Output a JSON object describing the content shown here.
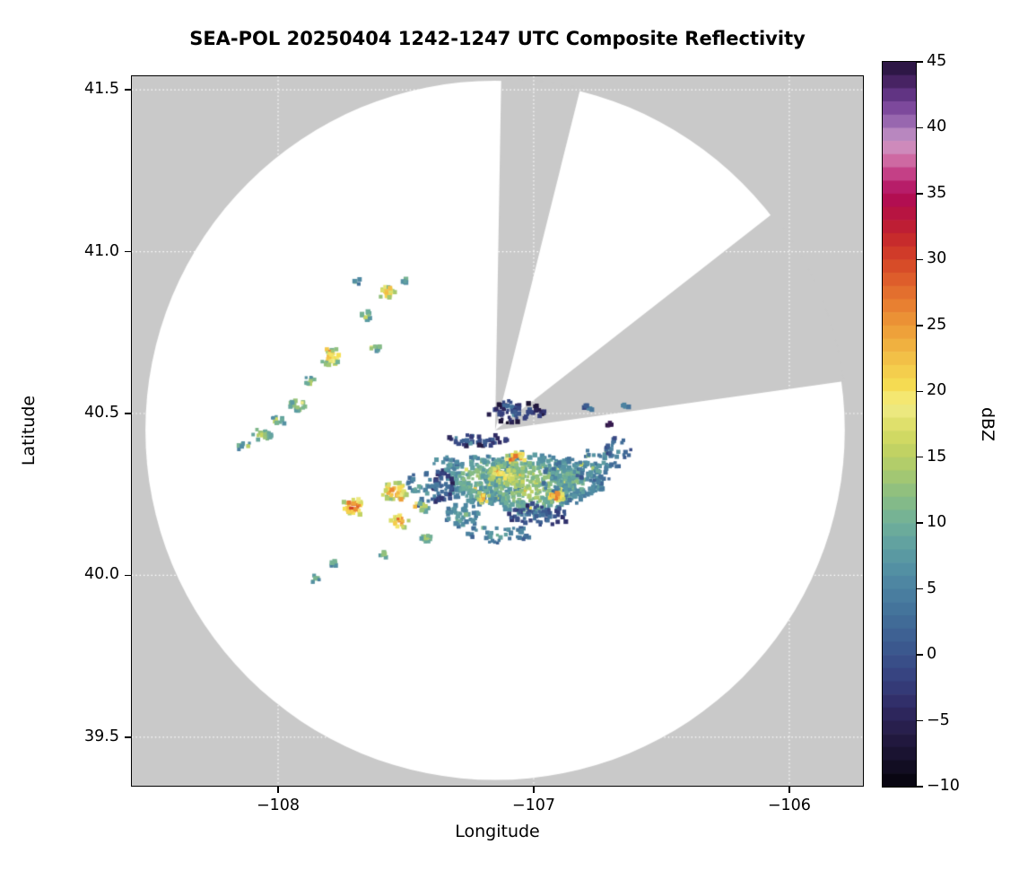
{
  "chart_data": {
    "type": "heatmap",
    "variant": "radar_composite_reflectivity_ppi",
    "title": "SEA-POL 20250404 1242-1247 UTC Composite Reflectivity",
    "xlabel": "Longitude",
    "ylabel": "Latitude",
    "axes": {
      "xlim": [
        -108.572,
        -105.712
      ],
      "ylim": [
        39.35,
        41.542
      ],
      "xticks": [
        -108,
        -107,
        -106
      ],
      "xtick_labels": [
        "−108",
        "−107",
        "−106"
      ],
      "yticks": [
        39.5,
        40.0,
        40.5,
        41.0,
        41.5
      ],
      "ytick_labels": [
        "39.5",
        "40.0",
        "40.5",
        "41.0",
        "41.5"
      ],
      "grid": true
    },
    "colorbar": {
      "label": "dBZ",
      "min": -10,
      "max": 45,
      "ticks": [
        45,
        40,
        35,
        30,
        25,
        20,
        15,
        10,
        5,
        0,
        -5,
        -10
      ],
      "tick_labels": [
        "45",
        "40",
        "35",
        "30",
        "25",
        "20",
        "15",
        "10",
        "5",
        "0",
        "−5",
        "−10"
      ],
      "stops": [
        [
          -10,
          "#05030a"
        ],
        [
          -8,
          "#16102a"
        ],
        [
          -6,
          "#251b45"
        ],
        [
          -4,
          "#2f2a63"
        ],
        [
          -2,
          "#363f7d"
        ],
        [
          0,
          "#3a538b"
        ],
        [
          2,
          "#3f6695"
        ],
        [
          4,
          "#46789d"
        ],
        [
          6,
          "#508ba3"
        ],
        [
          8,
          "#5d9da2"
        ],
        [
          10,
          "#6faf99"
        ],
        [
          12,
          "#89bd83"
        ],
        [
          14,
          "#aaca6e"
        ],
        [
          16,
          "#c9d55f"
        ],
        [
          18,
          "#e6e470"
        ],
        [
          19,
          "#f2ec8d"
        ],
        [
          20,
          "#f6e155"
        ],
        [
          22,
          "#f3c74a"
        ],
        [
          24,
          "#efa93c"
        ],
        [
          26,
          "#ea8933"
        ],
        [
          28,
          "#e1662c"
        ],
        [
          30,
          "#d44327"
        ],
        [
          32,
          "#c2232e"
        ],
        [
          34,
          "#b30f47"
        ],
        [
          35,
          "#b00d5b"
        ],
        [
          36,
          "#bd2d77"
        ],
        [
          37,
          "#ca5294"
        ],
        [
          38,
          "#d27fb0"
        ],
        [
          39,
          "#c995c5"
        ],
        [
          40,
          "#a678b8"
        ],
        [
          41,
          "#8a55a6"
        ],
        [
          42,
          "#6f3d92"
        ],
        [
          43,
          "#532a73"
        ],
        [
          44,
          "#3a1c52"
        ],
        [
          45,
          "#22113a"
        ]
      ]
    },
    "map": {
      "outside_color": "#c9c9c9",
      "inside_color": "#ffffff",
      "grid_color": "#ffffff",
      "radar": {
        "lon": -107.151,
        "lat": 40.448,
        "range_deg_lon": 1.368
      },
      "blocked_sectors_az": [
        [
          1,
          14
        ],
        [
          52,
          82
        ]
      ]
    },
    "echoes_format": [
      "lon",
      "lat",
      "width_deg",
      "height_deg",
      "dbz",
      "n_gates",
      "flat"
    ],
    "echoes": [
      [
        -107.07,
        40.503,
        0.246,
        0.061,
        0,
        60
      ],
      [
        -107.098,
        40.525,
        0.049,
        0.028,
        5,
        10
      ],
      [
        -107.228,
        40.415,
        0.263,
        0.039,
        1,
        45
      ],
      [
        -107.193,
        40.295,
        0.316,
        0.152,
        12,
        300
      ],
      [
        -107.018,
        40.282,
        0.386,
        0.194,
        14,
        450
      ],
      [
        -106.842,
        40.295,
        0.246,
        0.139,
        10,
        180
      ],
      [
        -107.07,
        40.359,
        0.077,
        0.039,
        30,
        25
      ],
      [
        -106.912,
        40.246,
        0.063,
        0.039,
        29,
        20
      ],
      [
        -107.193,
        40.24,
        0.056,
        0.033,
        26,
        15
      ],
      [
        -107.123,
        40.309,
        0.14,
        0.069,
        20,
        70
      ],
      [
        -106.982,
        40.185,
        0.246,
        0.069,
        3,
        80
      ],
      [
        -107.351,
        40.268,
        0.088,
        0.111,
        2,
        50
      ],
      [
        -107.14,
        40.129,
        0.281,
        0.055,
        8,
        50
      ],
      [
        -106.754,
        40.337,
        0.175,
        0.111,
        8,
        55
      ],
      [
        -106.667,
        40.392,
        0.105,
        0.069,
        6,
        25
      ],
      [
        -106.702,
        40.467,
        0.028,
        0.022,
        44,
        6,
        1
      ],
      [
        -106.79,
        40.512,
        0.042,
        0.022,
        6,
        8
      ],
      [
        -107.439,
        40.268,
        0.14,
        0.111,
        8,
        40
      ],
      [
        -107.281,
        40.185,
        0.14,
        0.069,
        10,
        55
      ],
      [
        -107.572,
        40.875,
        0.063,
        0.039,
        24,
        22
      ],
      [
        -107.656,
        40.803,
        0.049,
        0.028,
        16,
        12
      ],
      [
        -107.621,
        40.703,
        0.042,
        0.028,
        14,
        10
      ],
      [
        -107.79,
        40.675,
        0.091,
        0.05,
        22,
        38
      ],
      [
        -107.877,
        40.6,
        0.042,
        0.028,
        14,
        10
      ],
      [
        -107.923,
        40.525,
        0.07,
        0.033,
        17,
        20
      ],
      [
        -108.0,
        40.481,
        0.056,
        0.028,
        15,
        13
      ],
      [
        -108.063,
        40.434,
        0.084,
        0.033,
        16,
        24
      ],
      [
        -108.133,
        40.401,
        0.049,
        0.022,
        13,
        9
      ],
      [
        -107.502,
        40.913,
        0.028,
        0.022,
        12,
        6
      ],
      [
        -107.695,
        40.905,
        0.028,
        0.017,
        10,
        5
      ],
      [
        -107.705,
        40.212,
        0.084,
        0.055,
        30,
        40
      ],
      [
        -107.544,
        40.259,
        0.098,
        0.055,
        27,
        45
      ],
      [
        -107.523,
        40.165,
        0.07,
        0.044,
        29,
        28
      ],
      [
        -107.439,
        40.212,
        0.056,
        0.033,
        18,
        15
      ],
      [
        -107.421,
        40.116,
        0.049,
        0.028,
        15,
        11
      ],
      [
        -107.586,
        40.066,
        0.035,
        0.022,
        14,
        7
      ],
      [
        -107.782,
        40.038,
        0.035,
        0.022,
        13,
        7
      ],
      [
        -107.853,
        39.988,
        0.035,
        0.022,
        12,
        7
      ],
      [
        -107.351,
        40.343,
        0.105,
        0.055,
        9,
        20
      ],
      [
        -106.642,
        40.525,
        0.035,
        0.022,
        8,
        5
      ]
    ]
  }
}
